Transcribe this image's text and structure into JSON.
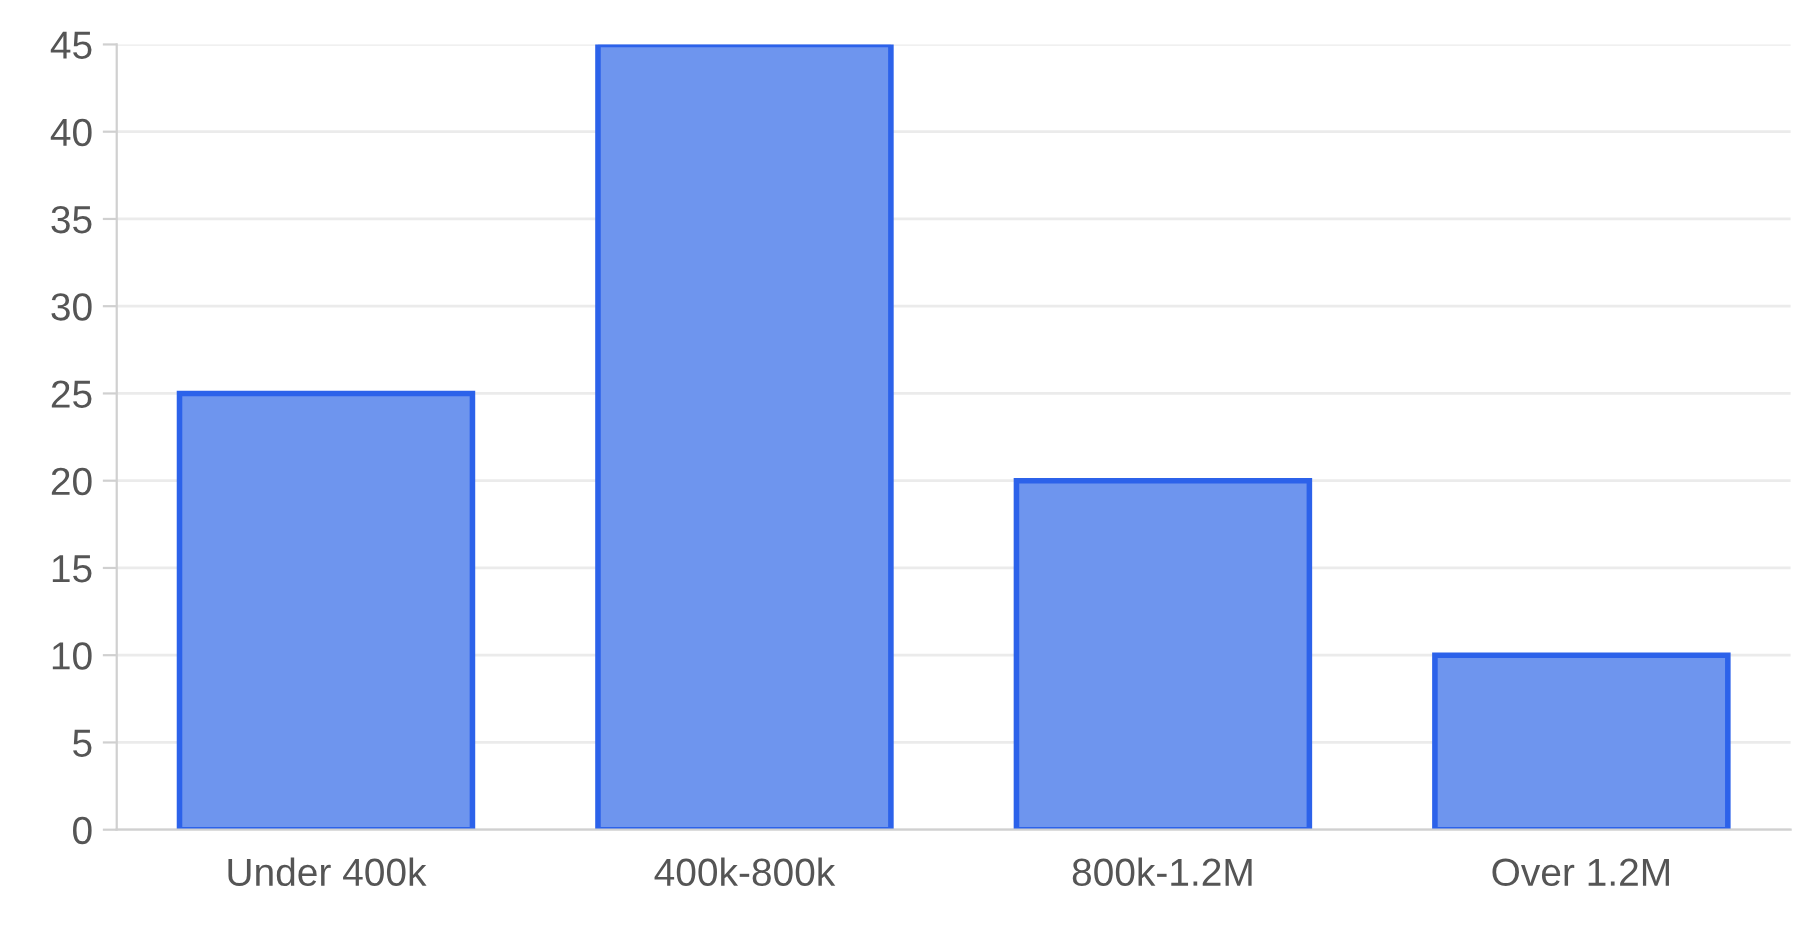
{
  "chart_data": {
    "type": "bar",
    "categories": [
      "Under 400k",
      "400k-800k",
      "800k-1.2M",
      "Over 1.2M"
    ],
    "values": [
      25,
      45,
      20,
      10
    ],
    "color": "#6e95ee",
    "ylim": [
      0,
      45
    ],
    "yticks": [
      0,
      5,
      10,
      15,
      20,
      25,
      30,
      35,
      40,
      45
    ],
    "grid": "y"
  }
}
